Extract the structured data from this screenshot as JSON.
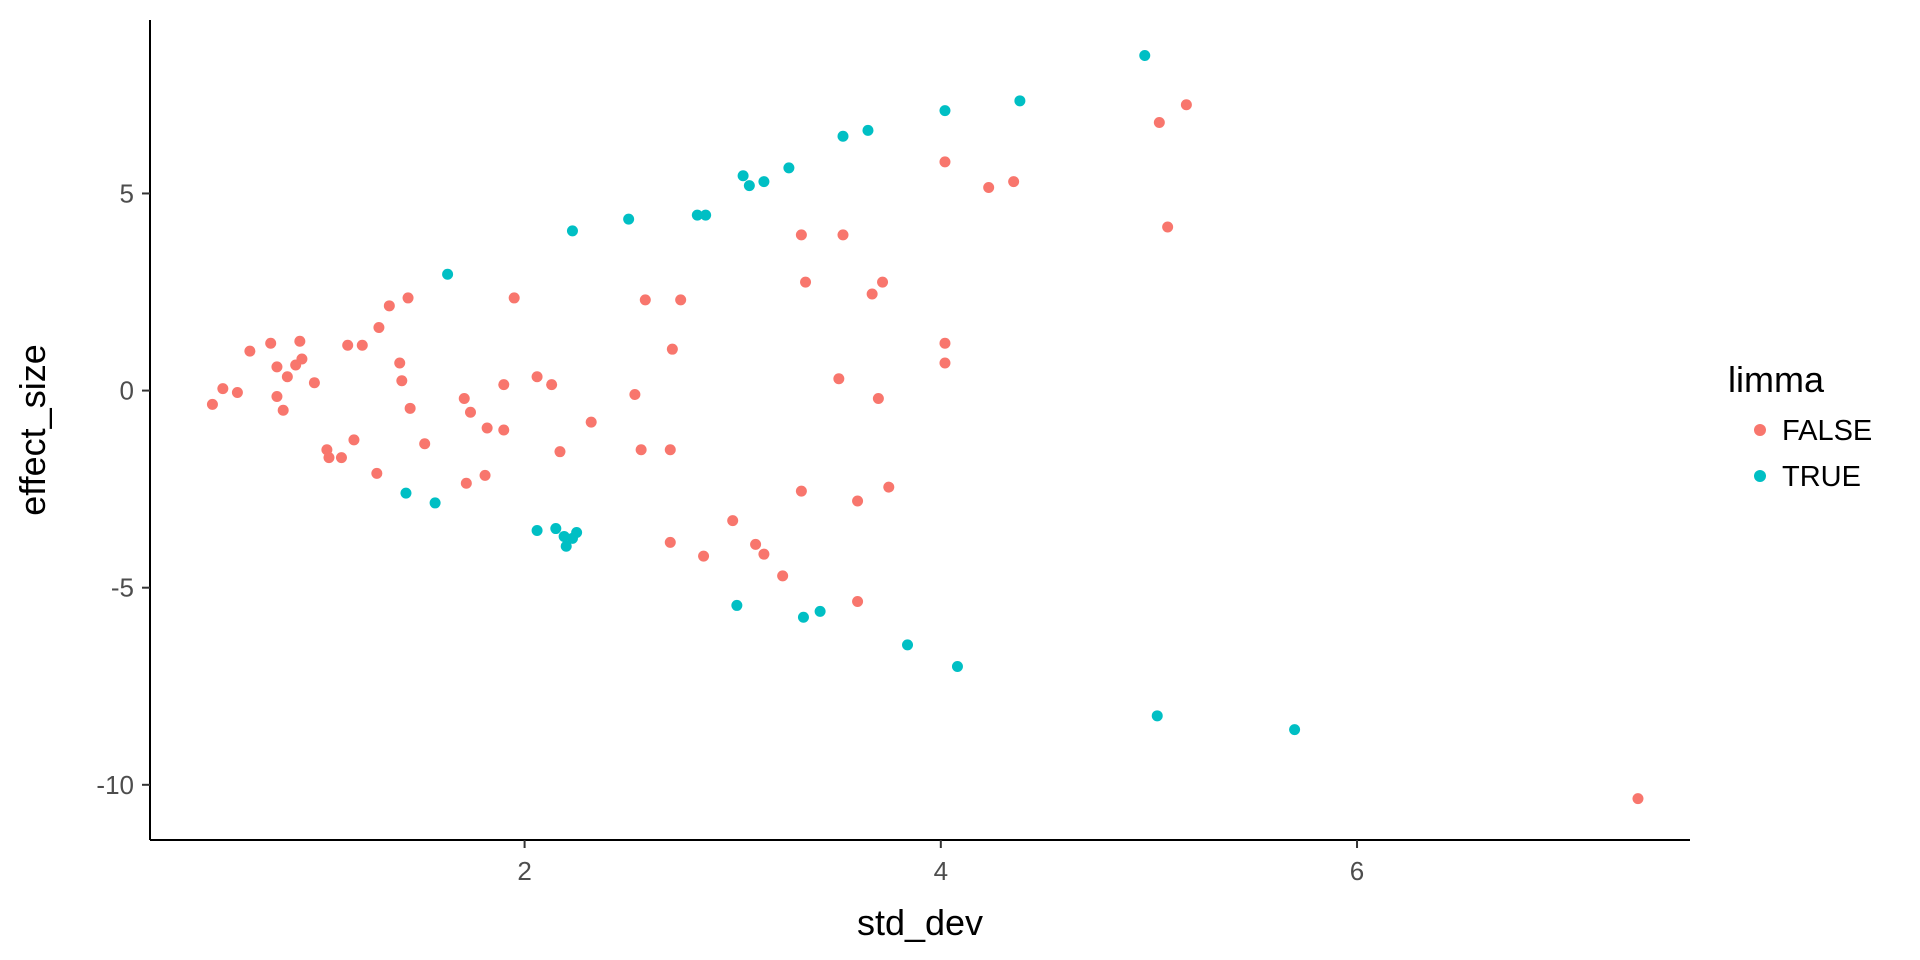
{
  "chart_data": {
    "type": "scatter",
    "title": "",
    "xlabel": "std_dev",
    "ylabel": "effect_size",
    "xlim": [
      0.2,
      7.6
    ],
    "ylim": [
      -11.4,
      9.4
    ],
    "xticks": [
      2,
      4,
      6
    ],
    "xtick_labels": [
      "2",
      "4",
      "6"
    ],
    "yticks": [
      5,
      0,
      -5,
      -10
    ],
    "ytick_labels": [
      "5",
      "0",
      "-5",
      "-10"
    ],
    "grid": false,
    "legend": {
      "title": "limma",
      "position": "right"
    },
    "series": [
      {
        "name": "FALSE",
        "color": "#F8766D",
        "points": [
          [
            0.5,
            -0.35
          ],
          [
            0.55,
            0.05
          ],
          [
            0.62,
            -0.05
          ],
          [
            0.68,
            1.0
          ],
          [
            0.78,
            1.2
          ],
          [
            0.81,
            -0.15
          ],
          [
            0.81,
            0.6
          ],
          [
            0.84,
            -0.5
          ],
          [
            0.86,
            0.35
          ],
          [
            0.9,
            0.65
          ],
          [
            0.92,
            1.25
          ],
          [
            0.93,
            0.8
          ],
          [
            0.99,
            0.2
          ],
          [
            1.05,
            -1.5
          ],
          [
            1.06,
            -1.7
          ],
          [
            1.12,
            -1.7
          ],
          [
            1.15,
            1.15
          ],
          [
            1.18,
            -1.25
          ],
          [
            1.22,
            1.15
          ],
          [
            1.29,
            -2.1
          ],
          [
            1.3,
            1.6
          ],
          [
            1.35,
            2.15
          ],
          [
            1.4,
            0.7
          ],
          [
            1.41,
            0.25
          ],
          [
            1.44,
            2.35
          ],
          [
            1.45,
            -0.45
          ],
          [
            1.52,
            -1.35
          ],
          [
            1.71,
            -0.2
          ],
          [
            1.72,
            -2.35
          ],
          [
            1.74,
            -0.55
          ],
          [
            1.81,
            -2.15
          ],
          [
            1.82,
            -0.95
          ],
          [
            1.9,
            0.15
          ],
          [
            1.9,
            -1.0
          ],
          [
            1.95,
            2.35
          ],
          [
            2.06,
            0.35
          ],
          [
            2.13,
            0.15
          ],
          [
            2.17,
            -1.55
          ],
          [
            2.32,
            -0.8
          ],
          [
            2.53,
            -0.1
          ],
          [
            2.56,
            -1.5
          ],
          [
            2.58,
            2.3
          ],
          [
            2.7,
            -1.5
          ],
          [
            2.71,
            1.05
          ],
          [
            2.7,
            -3.85
          ],
          [
            2.75,
            2.3
          ],
          [
            2.86,
            -4.2
          ],
          [
            3.0,
            -3.3
          ],
          [
            3.11,
            -3.9
          ],
          [
            3.15,
            -4.15
          ],
          [
            3.24,
            -4.7
          ],
          [
            3.33,
            3.95
          ],
          [
            3.33,
            -2.55
          ],
          [
            3.35,
            2.75
          ],
          [
            3.51,
            0.3
          ],
          [
            3.53,
            3.95
          ],
          [
            3.6,
            -2.8
          ],
          [
            3.67,
            2.45
          ],
          [
            3.7,
            -0.2
          ],
          [
            3.72,
            2.75
          ],
          [
            3.75,
            -2.45
          ],
          [
            3.6,
            -5.35
          ],
          [
            4.02,
            5.8
          ],
          [
            4.02,
            1.2
          ],
          [
            4.02,
            0.7
          ],
          [
            4.23,
            5.15
          ],
          [
            4.35,
            5.3
          ],
          [
            5.05,
            6.8
          ],
          [
            5.09,
            4.15
          ],
          [
            5.18,
            7.25
          ],
          [
            7.35,
            -10.35
          ]
        ]
      },
      {
        "name": "TRUE",
        "color": "#00BFC4",
        "points": [
          [
            1.43,
            -2.6
          ],
          [
            1.57,
            -2.85
          ],
          [
            1.63,
            2.95
          ],
          [
            2.06,
            -3.55
          ],
          [
            2.15,
            -3.5
          ],
          [
            2.19,
            -3.7
          ],
          [
            2.2,
            -3.95
          ],
          [
            2.23,
            -3.75
          ],
          [
            2.25,
            -3.6
          ],
          [
            2.23,
            4.05
          ],
          [
            2.5,
            4.35
          ],
          [
            2.83,
            4.45
          ],
          [
            2.87,
            4.45
          ],
          [
            3.02,
            -5.45
          ],
          [
            3.05,
            5.45
          ],
          [
            3.08,
            5.2
          ],
          [
            3.15,
            5.3
          ],
          [
            3.27,
            5.65
          ],
          [
            3.34,
            -5.75
          ],
          [
            3.42,
            -5.6
          ],
          [
            3.53,
            6.45
          ],
          [
            3.65,
            6.6
          ],
          [
            3.84,
            -6.45
          ],
          [
            4.02,
            7.1
          ],
          [
            4.08,
            -7.0
          ],
          [
            4.38,
            7.35
          ],
          [
            4.98,
            8.5
          ],
          [
            5.04,
            -8.25
          ],
          [
            5.7,
            -8.6
          ]
        ]
      }
    ]
  }
}
